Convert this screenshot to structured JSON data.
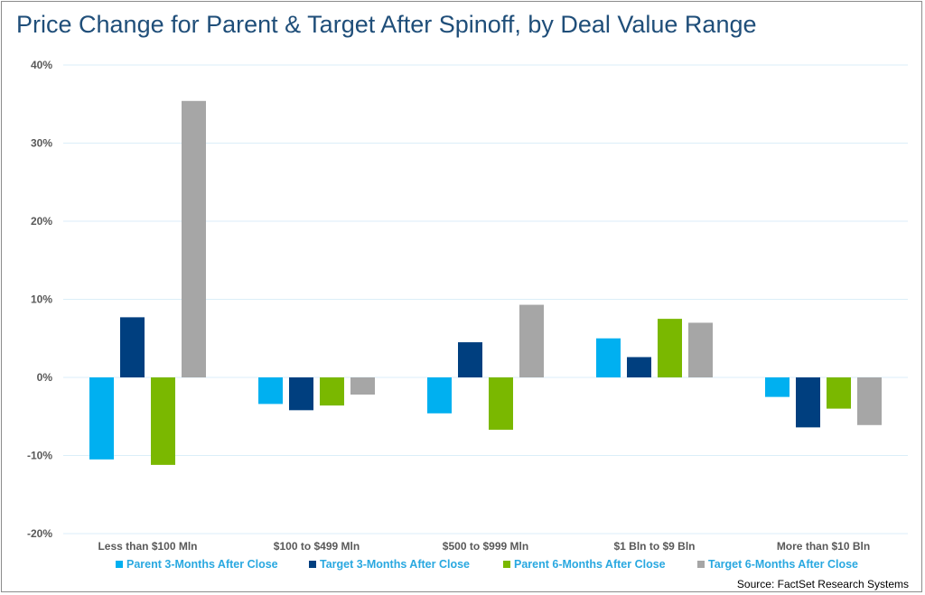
{
  "title": "Price Change for Parent & Target After Spinoff, by Deal Value Range",
  "source": "Source: FactSet Research Systems",
  "chart_data": {
    "type": "bar",
    "title": "Price Change for Parent & Target After Spinoff, by Deal Value Range",
    "xlabel": "",
    "ylabel": "",
    "ylim": [
      -0.2,
      0.4
    ],
    "y_tick_values": [
      -0.2,
      -0.1,
      0,
      0.1,
      0.2,
      0.3,
      0.4
    ],
    "y_tick_labels": [
      "-20%",
      "-10%",
      "0%",
      "10%",
      "20%",
      "30%",
      "40%"
    ],
    "grid": true,
    "legend_position": "bottom",
    "categories": [
      "Less than $100 Mln",
      "$100 to $499 Mln",
      "$500 to $999 Mln",
      "$1 Bln to $9 Bln",
      "More than $10 Bln"
    ],
    "series": [
      {
        "name": "Parent 3-Months After Close",
        "color": "#00b0f0",
        "values": [
          -0.105,
          -0.034,
          -0.046,
          0.05,
          -0.025
        ]
      },
      {
        "name": "Target 3-Months After Close",
        "color": "#003f7f",
        "values": [
          0.077,
          -0.042,
          0.045,
          0.026,
          -0.064
        ]
      },
      {
        "name": "Parent 6-Months After Close",
        "color": "#7ab800",
        "values": [
          -0.112,
          -0.036,
          -0.067,
          0.075,
          -0.04
        ]
      },
      {
        "name": "Target 6-Months After Close",
        "color": "#a6a6a6",
        "values": [
          0.354,
          -0.022,
          0.093,
          0.07,
          -0.061
        ]
      }
    ]
  }
}
